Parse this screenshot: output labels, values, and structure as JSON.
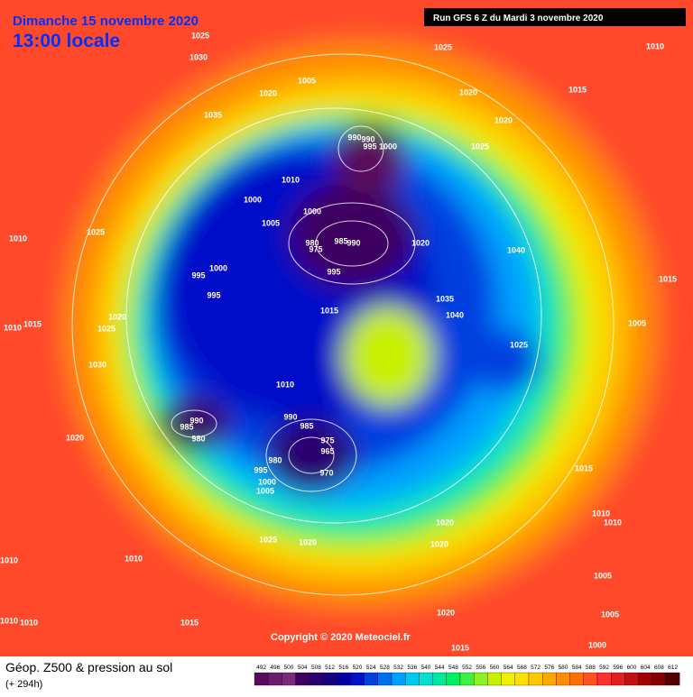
{
  "header": {
    "date": "Dimanche 15 novembre 2020",
    "time": "13:00 locale",
    "run": "Run GFS 6 Z du Mardi 3 novembre 2020"
  },
  "copyright": "Copyright © 2020 Meteociel.fr",
  "footer": {
    "title": "Géop. Z500 & pression au sol",
    "lead": "(+ 294h)"
  },
  "scale": {
    "values": [
      492,
      496,
      500,
      504,
      508,
      512,
      516,
      520,
      524,
      528,
      532,
      536,
      540,
      544,
      548,
      552,
      556,
      560,
      564,
      568,
      572,
      576,
      580,
      584,
      588,
      592,
      596,
      600,
      604,
      608,
      612
    ],
    "colors": [
      "#5a0a5a",
      "#6b1d6b",
      "#7a2a7a",
      "#3d0060",
      "#2a006e",
      "#1a0080",
      "#0000a0",
      "#0010c8",
      "#0040e0",
      "#0070f0",
      "#00a0ff",
      "#00c8f0",
      "#00e0d0",
      "#00e8a0",
      "#00f060",
      "#40f040",
      "#90f020",
      "#c8f000",
      "#f0f000",
      "#ffe000",
      "#ffc800",
      "#ffa800",
      "#ff8c00",
      "#ff6e00",
      "#ff5020",
      "#ff3030",
      "#e02020",
      "#c01010",
      "#a00000",
      "#800000",
      "#500000"
    ]
  },
  "isobar_labels": [
    "1025",
    "1030",
    "1035",
    "1020",
    "1005",
    "1025",
    "1020",
    "1010",
    "1015",
    "1020",
    "1025",
    "990",
    "990",
    "995",
    "1000",
    "1010",
    "1000",
    "1000",
    "1005",
    "1010",
    "1025",
    "980",
    "975",
    "985",
    "990",
    "1020",
    "1040",
    "995",
    "995",
    "1000",
    "995",
    "1015",
    "1035",
    "1040",
    "1015",
    "1020",
    "1015",
    "1010",
    "1025",
    "1005",
    "1030",
    "1025",
    "1010",
    "990",
    "985",
    "990",
    "985",
    "980",
    "975",
    "965",
    "980",
    "970",
    "995",
    "1000",
    "1005",
    "1020",
    "1015",
    "1010",
    "1010",
    "1025",
    "1020",
    "1020",
    "1020",
    "1010",
    "1010",
    "1005",
    "1020",
    "1005",
    "1010",
    "1010",
    "1015",
    "1000",
    "1015"
  ]
}
